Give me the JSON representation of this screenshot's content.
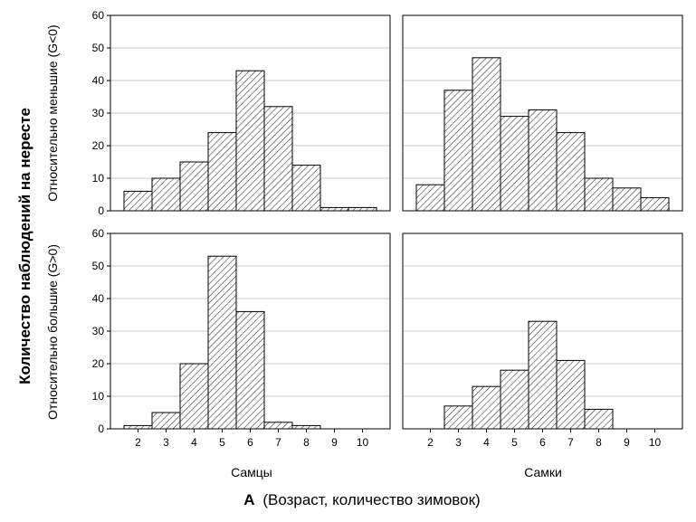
{
  "chart_data": {
    "type": "bar",
    "ylabel": "Количество наблюдений на нересте",
    "xlabel_prefix": "A",
    "xlabel": "(Возраст, количество зимовок)",
    "row_labels": [
      "Относительно меньшие (G<0)",
      "Относительно большие (G>0)"
    ],
    "column_labels": [
      "Самцы",
      "Самки"
    ],
    "categories": [
      "2",
      "3",
      "4",
      "5",
      "6",
      "7",
      "8",
      "9",
      "10"
    ],
    "ylim": [
      0,
      60
    ],
    "yticks": [
      0,
      10,
      20,
      30,
      40,
      50,
      60
    ],
    "grid": true,
    "bar_fill": "diagonal-hatch",
    "colors": {
      "grid": "#c8c8c8",
      "axis": "#000000",
      "bar_fill": "#ffffff",
      "hatch": "#000000"
    },
    "panels": [
      {
        "row": "Относительно меньшие (G<0)",
        "column": "Самцы",
        "values": [
          6,
          10,
          15,
          24,
          43,
          32,
          14,
          1,
          1
        ]
      },
      {
        "row": "Относительно меньшие (G<0)",
        "column": "Самки",
        "values": [
          8,
          37,
          47,
          29,
          31,
          24,
          10,
          7,
          4
        ]
      },
      {
        "row": "Относительно большие (G>0)",
        "column": "Самцы",
        "values": [
          1,
          5,
          20,
          53,
          36,
          2,
          1,
          0,
          0
        ]
      },
      {
        "row": "Относительно большие (G>0)",
        "column": "Самки",
        "values": [
          0,
          7,
          13,
          18,
          33,
          21,
          6,
          0,
          0
        ]
      }
    ]
  }
}
